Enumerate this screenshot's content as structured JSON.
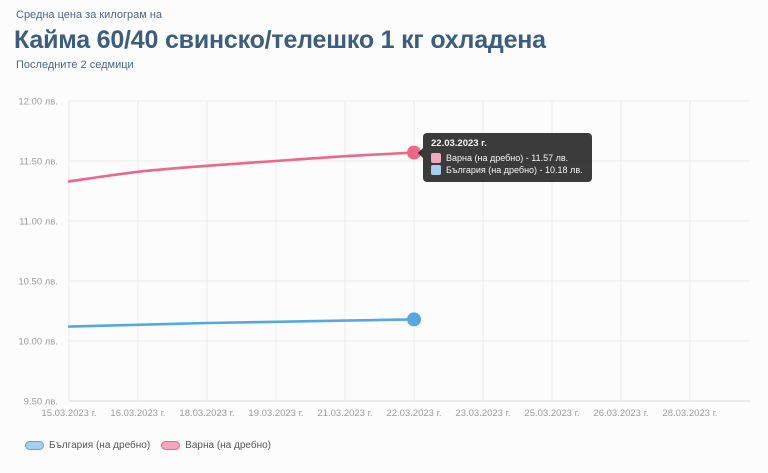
{
  "header": {
    "eyebrow": "Средна цена за килограм на",
    "title": "Кайма 60/40 свинско/телешко 1 кг охладена",
    "subtitle": "Последните 2 седмици"
  },
  "colors": {
    "heading": "#3a5d80",
    "subheading": "#47688c",
    "axis_text": "#9a9a9a",
    "grid": "#ececec",
    "axis_line": "#d9d9d9",
    "tooltip_bg": "rgba(25,25,25,0.85)",
    "legend_text": "#555555",
    "background": "#fcfcfc"
  },
  "chart_data": {
    "type": "line",
    "categories": [
      "15.03.2023 г.",
      "16.03.2023 г.",
      "18.03.2023 г.",
      "19.03.2023 г.",
      "21.03.2023 г.",
      "22.03.2023 г.",
      "23.03.2023 г.",
      "25.03.2023 г.",
      "26.03.2023 г.",
      "28.03.2023 г."
    ],
    "series": [
      {
        "name": "България (на дребно)",
        "color": "#55a9e2",
        "swatch": "#a5cff0",
        "values": [
          10.12,
          10.135,
          10.15,
          10.16,
          10.17,
          10.18,
          null,
          null,
          null,
          null
        ]
      },
      {
        "name": "Варна (на дребно)",
        "color": "#ee6787",
        "swatch": "#f3a7bb",
        "values": [
          11.33,
          11.41,
          11.46,
          11.5,
          11.54,
          11.57,
          null,
          null,
          null,
          null
        ]
      }
    ],
    "y_ticks": [
      12.0,
      11.5,
      11.0,
      10.5,
      10.0,
      9.5
    ],
    "y_unit": "лв.",
    "ylim": [
      9.5,
      12.0
    ],
    "grid": true,
    "legend_position": "bottom-left",
    "title": "Кайма 60/40 свинско/телешко 1 кг охладена",
    "xlabel": "",
    "ylabel": ""
  },
  "tooltip": {
    "date": "22.03.2023 г.",
    "rows": [
      {
        "label": "Варна (на дребно) - 11.57 лв.",
        "swatch": "#f3a7bb"
      },
      {
        "label": "България (на дребно) - 10.18 лв.",
        "swatch": "#a5cff0"
      }
    ]
  }
}
